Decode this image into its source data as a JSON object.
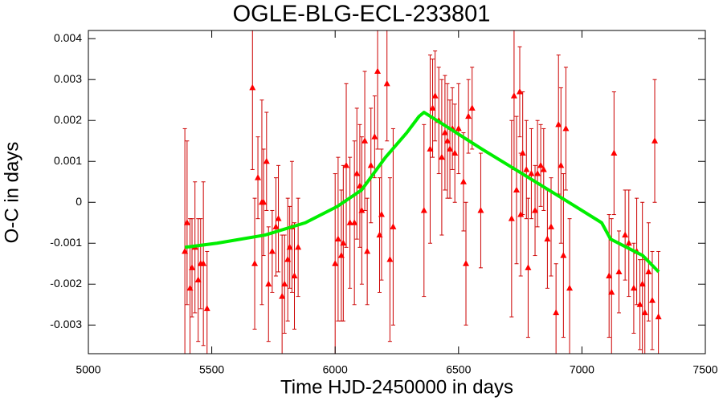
{
  "chart_data": {
    "type": "scatter",
    "title": "OGLE-BLG-ECL-233801",
    "x_label": "Time HJD-2450000 in days",
    "y_label": "O-C in days",
    "xlim": [
      5000,
      7500
    ],
    "xticks": [
      5000,
      5500,
      6000,
      6500,
      7000,
      7500
    ],
    "ylim": [
      -0.0037,
      0.0042
    ],
    "yticks": [
      -0.003,
      -0.002,
      -0.001,
      0,
      0.001,
      0.002,
      0.003,
      0.004
    ],
    "series": [
      {
        "mark": "triangle",
        "color": "#ff0000",
        "error_color": "#cc0000",
        "x": [
          5391,
          5400,
          5412,
          5420,
          5432,
          5445,
          5455,
          5466,
          5481,
          5665,
          5674,
          5687,
          5703,
          5710,
          5722,
          5730,
          5745,
          5760,
          5770,
          5785,
          5795,
          5808,
          5816,
          5825,
          5835,
          5850,
          6000,
          6012,
          6025,
          6033,
          6045,
          6060,
          6078,
          6088,
          6100,
          6108,
          6120,
          6130,
          6145,
          6160,
          6172,
          6180,
          6188,
          6210,
          6222,
          6235,
          6360,
          6385,
          6395,
          6405,
          6420,
          6432,
          6445,
          6455,
          6465,
          6475,
          6485,
          6500,
          6520,
          6530,
          6540,
          6555,
          6590,
          6715,
          6725,
          6735,
          6748,
          6752,
          6760,
          6775,
          6782,
          6795,
          6810,
          6820,
          6833,
          6845,
          6860,
          6875,
          6895,
          6905,
          6915,
          6925,
          6935,
          6950,
          7110,
          7120,
          7130,
          7150,
          7175,
          7190,
          7210,
          7222,
          7235,
          7245,
          7255,
          7270,
          7285,
          7295,
          7310
        ],
        "values": [
          -0.0012,
          -0.0005,
          -0.0021,
          -0.0016,
          -0.0011,
          -0.0019,
          -0.0015,
          -0.0015,
          -0.0026,
          0.0028,
          -0.0015,
          0.0006,
          0.0,
          0.0,
          0.001,
          -0.002,
          -0.0012,
          -0.0006,
          -0.0004,
          -0.0023,
          -0.002,
          -0.0014,
          -0.0011,
          -0.0006,
          -0.0018,
          -0.0011,
          -0.0015,
          -0.0009,
          -0.0013,
          -0.001,
          0.0009,
          -0.0005,
          -0.0005,
          0.0007,
          0.0004,
          -0.0002,
          0.0015,
          -0.0012,
          0.0009,
          0.0016,
          0.0032,
          -0.0008,
          -0.0003,
          0.0029,
          -0.0014,
          -0.0006,
          -0.0002,
          0.0013,
          0.0023,
          0.0026,
          0.002,
          0.0011,
          0.0017,
          0.0015,
          0.0013,
          0.0018,
          0.0012,
          0.0018,
          0.0005,
          -0.0015,
          0.0021,
          0.0023,
          -0.0002,
          -0.0004,
          0.0026,
          0.0003,
          0.0027,
          -0.0003,
          0.0012,
          0.0008,
          -0.0016,
          0.0007,
          -0.0002,
          0.0007,
          0.0009,
          0.0008,
          -0.0009,
          -0.0006,
          -0.0027,
          0.0019,
          0.0009,
          -0.0013,
          0.0018,
          -0.0021,
          -0.0018,
          -0.0022,
          0.0012,
          -0.0017,
          -0.0008,
          -0.001,
          -0.0021,
          -0.0012,
          -0.0025,
          -0.002,
          -0.0027,
          -0.0017,
          -0.0024,
          0.0015,
          -0.0028
        ],
        "errors": [
          0.003,
          0.002,
          0.0017,
          0.0012,
          0.0016,
          0.0015,
          0.0011,
          0.002,
          0.0014,
          0.002,
          0.0016,
          0.001,
          0.0025,
          0.0013,
          0.0012,
          0.0014,
          0.001,
          0.0012,
          0.0013,
          0.0015,
          0.0012,
          0.0015,
          0.001,
          0.0016,
          0.0013,
          0.0012,
          0.0022,
          0.002,
          0.0016,
          0.0019,
          0.002,
          0.0016,
          0.002,
          0.0016,
          0.0015,
          0.0018,
          0.0017,
          0.0013,
          0.0014,
          0.001,
          0.0019,
          0.0014,
          0.0016,
          0.0014,
          0.002,
          0.0024,
          0.0021,
          0.0023,
          0.0012,
          0.0011,
          0.0013,
          0.0019,
          0.0014,
          0.0014,
          0.0012,
          0.001,
          0.0012,
          0.0011,
          0.0012,
          0.0015,
          0.0009,
          0.001,
          0.0014,
          0.0024,
          0.0018,
          0.0018,
          0.0011,
          0.0015,
          0.0015,
          0.0012,
          0.0017,
          0.0011,
          0.0011,
          0.0013,
          0.001,
          0.001,
          0.0012,
          0.0012,
          0.0012,
          0.0017,
          0.0019,
          0.002,
          0.0015,
          0.0017,
          0.0015,
          0.0018,
          0.0015,
          0.001,
          0.0011,
          0.0013,
          0.0011,
          0.0013,
          0.0011,
          0.002,
          0.0013,
          0.0012,
          0.0012,
          0.0015,
          0.0016
        ]
      },
      {
        "mark": "line",
        "color": "#00ee00",
        "x": [
          5391,
          5521,
          5716,
          5879,
          6009,
          6107,
          6204,
          6290,
          6340,
          6360,
          6465,
          6595,
          6758,
          6920,
          7080,
          7116,
          7246,
          7311
        ],
        "values": [
          -0.0011,
          -0.001,
          -0.0008,
          -0.0005,
          -0.0001,
          0.0003,
          0.0011,
          0.0017,
          0.0021,
          0.0022,
          0.0018,
          0.0013,
          0.0007,
          0.0001,
          -0.0005,
          -0.0009,
          -0.0013,
          -0.0017
        ]
      }
    ]
  }
}
